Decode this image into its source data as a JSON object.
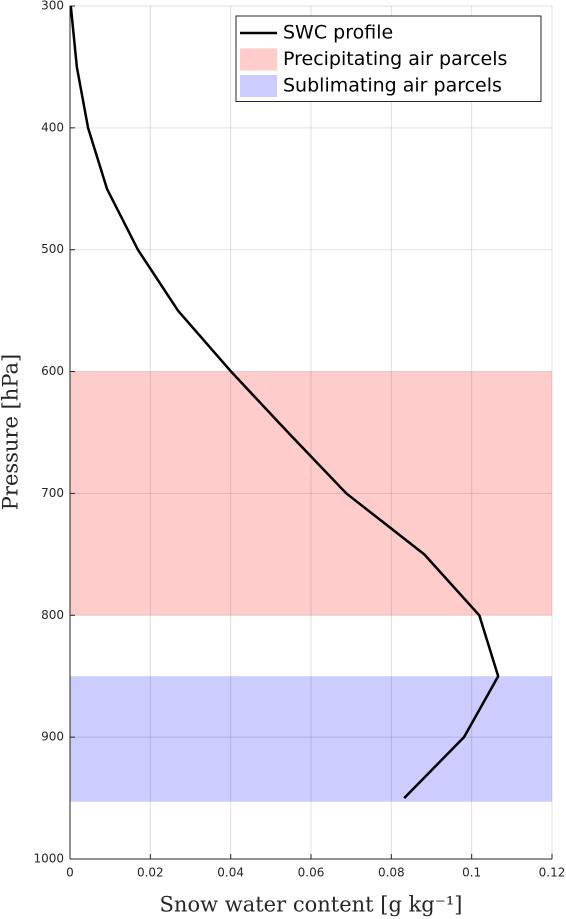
{
  "chart_data": {
    "type": "line",
    "xlabel": "Snow water content [g kg⁻¹]",
    "ylabel": "Pressure [hPa]",
    "series": [
      {
        "name": "SWC profile",
        "color": "#000000",
        "x": [
          0.0002,
          0.0017,
          0.0045,
          0.0092,
          0.0169,
          0.0269,
          0.0401,
          0.0543,
          0.0688,
          0.0882,
          0.1019,
          0.1066,
          0.0981,
          0.0832
        ],
        "values": [
          300,
          350,
          400,
          450,
          500,
          550,
          600,
          650,
          700,
          750,
          800,
          850,
          900,
          950
        ]
      }
    ],
    "bands": [
      {
        "name": "Precipitating air parcels",
        "color": "#ff9999",
        "range": [
          600,
          800
        ]
      },
      {
        "name": "Sublimating air parcels",
        "color": "#9999ff",
        "range": [
          850,
          953
        ]
      }
    ],
    "xlim": [
      0,
      0.12
    ],
    "xticks": [
      0,
      0.02,
      0.04,
      0.06,
      0.08,
      0.1,
      0.12
    ],
    "ylim": [
      300,
      1000
    ],
    "yticks": [
      300,
      400,
      500,
      600,
      700,
      800,
      900,
      1000
    ],
    "y_reversed": true,
    "grid": true,
    "legend": "upper right"
  }
}
